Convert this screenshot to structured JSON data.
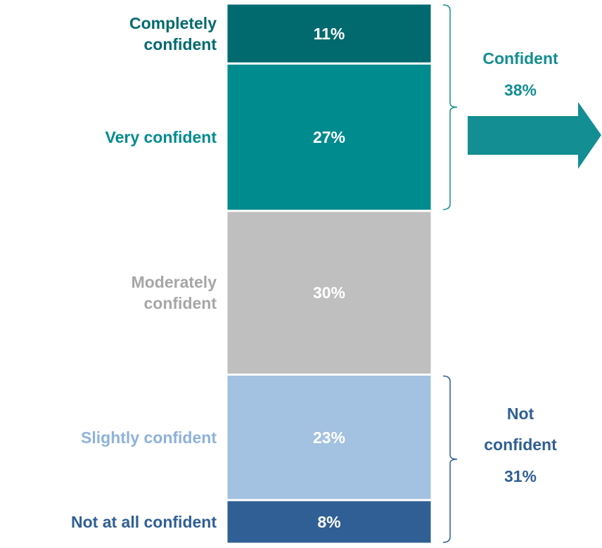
{
  "chart_data": {
    "type": "stacked_bar",
    "categories": [
      "Completely confident",
      "Very confident",
      "Moderately confident",
      "Slightly confident",
      "Not at all confident"
    ],
    "values": [
      11,
      27,
      30,
      23,
      8
    ],
    "value_labels": [
      "11%",
      "27%",
      "30%",
      "23%",
      "8%"
    ],
    "colors": [
      "#006a6e",
      "#008b8f",
      "#bfbfbf",
      "#a3c1e0",
      "#2f5f94"
    ],
    "label_colors": [
      "#006a6e",
      "#008b8f",
      "#a6a6a6",
      "#8eb1dc",
      "#2f5f94"
    ],
    "groups": [
      {
        "name": "Confident",
        "value": 38,
        "value_label": "38%",
        "color": "#138e92"
      },
      {
        "name": "Not confident",
        "value": 31,
        "value_label": "31%",
        "color": "#2f5f94"
      }
    ]
  }
}
